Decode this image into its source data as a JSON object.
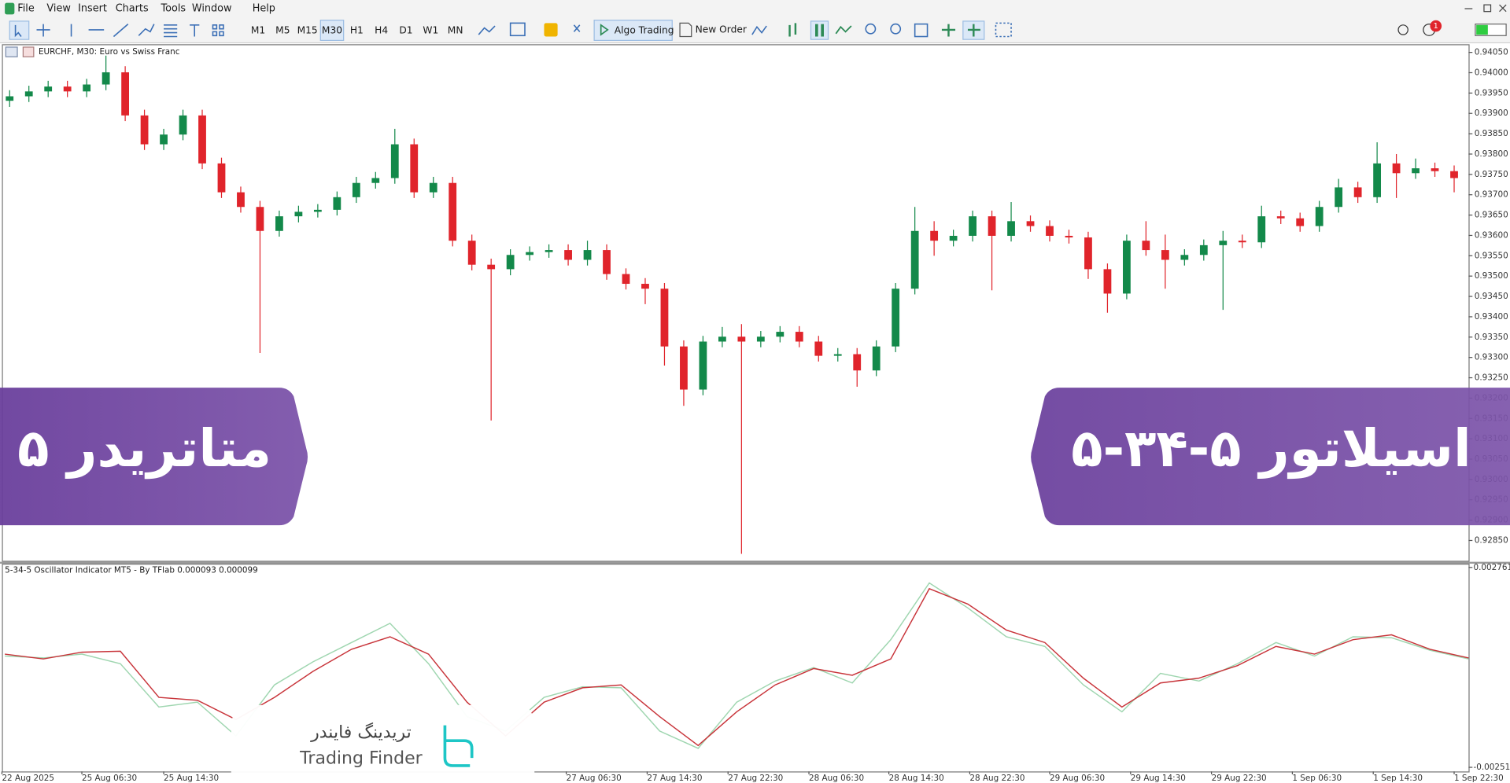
{
  "menu": [
    "File",
    "View",
    "Insert",
    "Charts",
    "Tools",
    "Window",
    "Help"
  ],
  "toolbar": {
    "timeframes": [
      "M1",
      "M5",
      "M15",
      "M30",
      "H1",
      "H4",
      "D1",
      "W1",
      "MN"
    ],
    "active_timeframe": "M30",
    "algo_trading": "Algo Trading",
    "new_order": "New Order",
    "notification_count": 1
  },
  "chart_data": [
    {
      "type": "candlestick",
      "title": "EURCHF, M30:  Euro vs Swiss Franc",
      "up_color": "#13894a",
      "down_color": "#e0242b",
      "open": [
        0.93931,
        0.93942,
        0.93954,
        0.93966,
        0.93954,
        0.93971,
        0.94001,
        0.93895,
        0.93824,
        0.93848,
        0.93895,
        0.93777,
        0.93706,
        0.9367,
        0.93611,
        0.93647,
        0.93658,
        0.93663,
        0.93694,
        0.93729,
        0.93741,
        0.93824,
        0.93706,
        0.93729,
        0.93587,
        0.93528,
        0.93517,
        0.93552,
        0.93559,
        0.93564,
        0.9354,
        0.93564,
        0.93505,
        0.93481,
        0.93469,
        0.93327,
        0.93221,
        0.93339,
        0.93351,
        0.93339,
        0.93351,
        0.93363,
        0.93339,
        0.93304,
        0.93308,
        0.93268,
        0.93327,
        0.93469,
        0.93611,
        0.93587,
        0.93599,
        0.93647,
        0.93599,
        0.93635,
        0.93623,
        0.93599,
        0.93595,
        0.93517,
        0.93457,
        0.93587,
        0.93564,
        0.9354,
        0.93552,
        0.93576,
        0.93587,
        0.93583,
        0.93647,
        0.93642,
        0.93623,
        0.9367,
        0.93718,
        0.93694,
        0.93777,
        0.93753,
        0.93765,
        0.93758
      ],
      "high": [
        0.93957,
        0.93968,
        0.9398,
        0.9398,
        0.93985,
        0.94042,
        0.94016,
        0.93909,
        0.93862,
        0.93909,
        0.93909,
        0.93791,
        0.9372,
        0.93685,
        0.93661,
        0.93673,
        0.93677,
        0.93708,
        0.93744,
        0.93756,
        0.93862,
        0.93838,
        0.93744,
        0.93744,
        0.93602,
        0.93543,
        0.93566,
        0.93573,
        0.93578,
        0.93578,
        0.93587,
        0.93578,
        0.93519,
        0.93495,
        0.93483,
        0.93342,
        0.93353,
        0.93375,
        0.93382,
        0.93365,
        0.93377,
        0.93377,
        0.93353,
        0.93323,
        0.93323,
        0.93342,
        0.93483,
        0.9367,
        0.93635,
        0.93614,
        0.93661,
        0.93661,
        0.93682,
        0.93649,
        0.93637,
        0.93614,
        0.93609,
        0.93531,
        0.93602,
        0.93635,
        0.93602,
        0.93566,
        0.9359,
        0.93611,
        0.93602,
        0.93673,
        0.93661,
        0.93656,
        0.93685,
        0.93739,
        0.93732,
        0.93829,
        0.938,
        0.93789,
        0.93779,
        0.93772
      ],
      "low": [
        0.93916,
        0.93928,
        0.9394,
        0.9394,
        0.9394,
        0.93957,
        0.93881,
        0.9381,
        0.9381,
        0.93834,
        0.93763,
        0.93692,
        0.93656,
        0.93311,
        0.93597,
        0.93632,
        0.93644,
        0.93649,
        0.9368,
        0.93715,
        0.93727,
        0.93692,
        0.93692,
        0.93573,
        0.93514,
        0.93145,
        0.93502,
        0.93538,
        0.93545,
        0.93526,
        0.93526,
        0.93491,
        0.93467,
        0.93431,
        0.9328,
        0.93181,
        0.93207,
        0.93325,
        0.92817,
        0.93325,
        0.93337,
        0.93325,
        0.9329,
        0.9329,
        0.93228,
        0.93254,
        0.93313,
        0.93455,
        0.9355,
        0.93573,
        0.93585,
        0.93465,
        0.93585,
        0.93609,
        0.93585,
        0.9358,
        0.93493,
        0.9341,
        0.93443,
        0.9355,
        0.93469,
        0.93526,
        0.93538,
        0.93417,
        0.93569,
        0.93569,
        0.93628,
        0.93609,
        0.93609,
        0.93656,
        0.9368,
        0.9368,
        0.93692,
        0.93739,
        0.93744,
        0.93706
      ],
      "close": [
        0.93942,
        0.93954,
        0.93966,
        0.93954,
        0.93971,
        0.94001,
        0.93895,
        0.93824,
        0.93848,
        0.93895,
        0.93777,
        0.93706,
        0.9367,
        0.93611,
        0.93647,
        0.93658,
        0.93663,
        0.93694,
        0.93729,
        0.93741,
        0.93824,
        0.93706,
        0.93729,
        0.93587,
        0.93528,
        0.93517,
        0.93552,
        0.93559,
        0.93564,
        0.9354,
        0.93564,
        0.93505,
        0.93481,
        0.93469,
        0.93327,
        0.93221,
        0.93339,
        0.93351,
        0.93339,
        0.93351,
        0.93363,
        0.93339,
        0.93304,
        0.93308,
        0.93268,
        0.93327,
        0.93469,
        0.93611,
        0.93587,
        0.93599,
        0.93647,
        0.93599,
        0.93635,
        0.93623,
        0.93599,
        0.93595,
        0.93517,
        0.93457,
        0.93587,
        0.93564,
        0.9354,
        0.93552,
        0.93576,
        0.93587,
        0.93583,
        0.93647,
        0.93642,
        0.93623,
        0.9367,
        0.93718,
        0.93694,
        0.93777,
        0.93753,
        0.93765,
        0.93758,
        0.93741
      ],
      "ylim": [
        0.928,
        0.9407
      ],
      "yticks": [
        {
          "value": 0.9405,
          "label": "0.94050"
        },
        {
          "value": 0.94,
          "label": "0.94000"
        },
        {
          "value": 0.9395,
          "label": "0.93950"
        },
        {
          "value": 0.939,
          "label": "0.93900"
        },
        {
          "value": 0.9385,
          "label": "0.93850"
        },
        {
          "value": 0.938,
          "label": "0.93800"
        },
        {
          "value": 0.9375,
          "label": "0.93750"
        },
        {
          "value": 0.937,
          "label": "0.93700"
        },
        {
          "value": 0.9365,
          "label": "0.93650"
        },
        {
          "value": 0.936,
          "label": "0.93600"
        },
        {
          "value": 0.9355,
          "label": "0.93550"
        },
        {
          "value": 0.935,
          "label": "0.93500"
        },
        {
          "value": 0.9345,
          "label": "0.93450"
        },
        {
          "value": 0.934,
          "label": "0.93400"
        },
        {
          "value": 0.9335,
          "label": "0.93350"
        },
        {
          "value": 0.933,
          "label": "0.93300"
        },
        {
          "value": 0.9325,
          "label": "0.93250"
        },
        {
          "value": 0.932,
          "label": "0.93200"
        },
        {
          "value": 0.9315,
          "label": "0.93150"
        },
        {
          "value": 0.931,
          "label": "0.93100"
        },
        {
          "value": 0.9305,
          "label": "0.93050"
        },
        {
          "value": 0.93,
          "label": "0.93000"
        },
        {
          "value": 0.9295,
          "label": "0.92950"
        },
        {
          "value": 0.929,
          "label": "0.92900"
        },
        {
          "value": 0.9285,
          "label": "0.92850"
        }
      ]
    },
    {
      "type": "line",
      "title": "5-34-5 Oscillator Indicator MT5 - By TFlab 0.000093 0.000099",
      "series": [
        {
          "color": "#9fd6b0",
          "values": [
            0.000424,
            0.000374,
            0.000475,
            0.000222,
            -0.00092,
            -0.000793,
            -0.001681,
            -0.000337,
            0.000272,
            0.00078,
            0.001287,
            0.000222,
            -0.001174,
            -0.001554,
            -0.000666,
            -0.000387,
            -0.000413,
            -0.001554,
            -0.002011,
            -0.000793,
            -0.000235,
            0.00012,
            -0.000286,
            0.000856,
            0.002353,
            0.001693,
            0.000932,
            0.000678,
            -0.000337,
            -0.001047,
            -3.2e-05,
            -0.000235,
            0.000222,
            0.00078,
            0.000424,
            0.000932,
            0.000907,
            0.000577,
            0.000348
          ]
        },
        {
          "color": "#c8343a",
          "values": [
            0.000475,
            0.000348,
            0.000526,
            0.000551,
            -0.000666,
            -0.000743,
            -0.00125,
            -0.000666,
            1.9e-05,
            0.000602,
            0.000932,
            0.000475,
            -0.000793,
            -0.001681,
            -0.000793,
            -0.000413,
            -0.000337,
            -0.001174,
            -0.001935,
            -0.001047,
            -0.000337,
            9.5e-05,
            -8.3e-05,
            0.000348,
            0.0022,
            0.001794,
            0.001109,
            0.00078,
            -0.000159,
            -0.00092,
            -0.000286,
            -0.000159,
            0.000171,
            0.000678,
            0.000475,
            0.000856,
            0.000983,
            0.000602,
            0.000374
          ]
        }
      ],
      "ylim": [
        -0.00262,
        0.00286
      ],
      "yticks": [
        0.002761,
        -0.002511
      ]
    }
  ],
  "time_axis": [
    "22 Aug 2025",
    "25 Aug 06:30",
    "25 Aug 14:30",
    "27 Aug 06:30",
    "27 Aug 14:30",
    "27 Aug 22:30",
    "28 Aug 06:30",
    "28 Aug 14:30",
    "28 Aug 22:30",
    "29 Aug 06:30",
    "29 Aug 14:30",
    "29 Aug 22:30",
    "1 Sep 06:30",
    "1 Sep 14:30",
    "1 Sep 22:30"
  ],
  "banners": {
    "left": "متاتریدر ۵",
    "right": "اسیلاتور ۵-۳۴-۵"
  },
  "logo": {
    "name_fa": "تریدینگ فایندر",
    "name_en": "Trading Finder"
  }
}
